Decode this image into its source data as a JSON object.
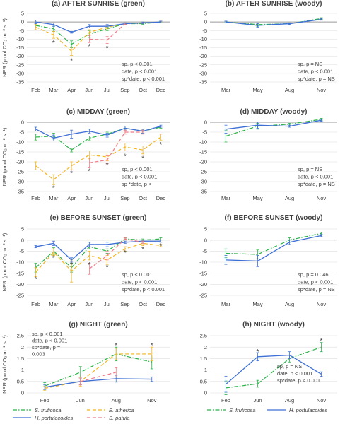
{
  "colors": {
    "S. fruticosa": "#2bb24a",
    "H. portulacoides": "#3d6fd6",
    "E. atherica": "#f2b51f",
    "S. patula": "#f07a86",
    "grid": "#dedede",
    "axis": "#9a9a9a",
    "text": "#404040"
  },
  "legend": {
    "green": [
      "S. fruticosa",
      "E. atherica",
      "H. portulacoides",
      "S. patula"
    ],
    "woody": [
      "S. fruticosa",
      "H. portulacoides"
    ]
  },
  "chart_data": [
    {
      "id": "a",
      "type": "line",
      "title": "(a) AFTER SUNRISE (green)",
      "ylabel": "NER (μmol CO₂ m⁻² s⁻¹)",
      "ylim": [
        -35,
        5
      ],
      "yticks": [
        5,
        0,
        -5,
        -10,
        -15,
        -20,
        -25,
        -30,
        -35
      ],
      "categories": [
        "Feb",
        "Mar",
        "Apr",
        "Jun",
        "Jul",
        "Sep",
        "Oct",
        "Dec"
      ],
      "stats": [
        "sp, p < 0.001",
        "date, p < 0.001",
        "sp*date, p < 0.001"
      ],
      "stars": [
        {
          "x": "Mar",
          "y": -12
        },
        {
          "x": "Apr",
          "y": -22.5
        },
        {
          "x": "Jun",
          "y": -14
        },
        {
          "x": "Jul",
          "y": -15
        }
      ],
      "series": [
        {
          "name": "S. fruticosa",
          "style": "dashdot",
          "x": [
            "Feb",
            "Mar",
            "Apr",
            "Jun",
            "Jul",
            "Sep",
            "Oct",
            "Dec"
          ],
          "values": [
            -2,
            -4,
            -13,
            -7,
            -4,
            -1,
            -1,
            0
          ],
          "err": [
            1.5,
            1.5,
            2,
            2,
            1,
            0.5,
            0.5,
            0.5
          ]
        },
        {
          "name": "E. atherica",
          "style": "dash",
          "x": [
            "Feb",
            "Mar",
            "Apr",
            "Jun",
            "Jul",
            "Sep",
            "Oct",
            "Dec"
          ],
          "values": [
            -3,
            -7.5,
            -17,
            -6,
            -3,
            -1,
            -0.5,
            0
          ],
          "err": [
            1.5,
            2,
            2.5,
            1.5,
            1,
            0.5,
            0.5,
            0.5
          ]
        },
        {
          "name": "H. portulacoides",
          "style": "solid",
          "x": [
            "Feb",
            "Mar",
            "Apr",
            "Jun",
            "Jul",
            "Sep",
            "Oct",
            "Dec"
          ],
          "values": [
            0,
            -1.5,
            -6,
            -2.5,
            -2.5,
            -1,
            -0.5,
            0
          ],
          "err": [
            1,
            1,
            0.5,
            1,
            1,
            0.5,
            0.5,
            0.5
          ]
        },
        {
          "name": "S. patula",
          "style": "dash",
          "x": [
            "Jun",
            "Jul",
            "Sep"
          ],
          "values": [
            -10,
            -10.5,
            -1
          ],
          "err": [
            2,
            2,
            0.5
          ]
        }
      ]
    },
    {
      "id": "b",
      "type": "line",
      "title": "(b) AFTER SUNRISE (woody)",
      "ylim": [
        -35,
        5
      ],
      "yticks": [
        5,
        0,
        -5,
        -10,
        -15,
        -20,
        -25,
        -30,
        -35
      ],
      "categories": [
        "Mar",
        "May",
        "Aug",
        "Nov"
      ],
      "stats": [
        "sp, p = NS",
        "date, p < 0.001",
        "sp*date, p = NS"
      ],
      "stars": [],
      "series": [
        {
          "name": "S. fruticosa",
          "style": "dashdot",
          "x": [
            "Mar",
            "May",
            "Aug",
            "Nov"
          ],
          "values": [
            0,
            -1.5,
            -1,
            2
          ],
          "err": [
            0.5,
            1,
            0.5,
            0.5
          ]
        },
        {
          "name": "H. portulacoides",
          "style": "solid",
          "x": [
            "Mar",
            "May",
            "Aug",
            "Nov"
          ],
          "values": [
            0,
            -2,
            -1,
            1.5
          ],
          "err": [
            0.5,
            1,
            0.5,
            0.5
          ]
        }
      ]
    },
    {
      "id": "c",
      "type": "line",
      "title": "(c) MIDDAY (green)",
      "ylabel": "NER (μmol CO₂ m⁻² s⁻¹)",
      "ylim": [
        -35,
        0
      ],
      "yticks": [
        0,
        -5,
        -10,
        -15,
        -20,
        -25,
        -30,
        -35
      ],
      "categories": [
        "Feb",
        "Mar",
        "Apr",
        "Jun",
        "Jul",
        "Sep",
        "Oct",
        "Dec"
      ],
      "stats": [
        "sp, p < 0.001",
        "date, p < 0.001",
        "sp *date, p <"
      ],
      "stars": [
        {
          "x": "Mar",
          "y": -33
        },
        {
          "x": "Apr",
          "y": -25.5
        },
        {
          "x": "Jun",
          "y": -24.5
        },
        {
          "x": "Jul",
          "y": -21.5
        },
        {
          "x": "Sep",
          "y": -17
        },
        {
          "x": "Oct",
          "y": -18
        },
        {
          "x": "Dec",
          "y": -11
        }
      ],
      "series": [
        {
          "name": "S. fruticosa",
          "style": "dashdot",
          "x": [
            "Feb",
            "Mar",
            "Apr",
            "Jun",
            "Jul",
            "Sep",
            "Oct",
            "Dec"
          ],
          "values": [
            -7.5,
            -7,
            -14,
            -8,
            -6,
            -3,
            -4.5,
            -2.5
          ],
          "err": [
            1.5,
            1.5,
            1,
            1,
            1,
            1,
            1,
            0.5
          ]
        },
        {
          "name": "E. atherica",
          "style": "dash",
          "x": [
            "Feb",
            "Mar",
            "Apr",
            "Jun",
            "Jul",
            "Sep",
            "Oct",
            "Dec"
          ],
          "values": [
            -22,
            -29,
            -22,
            -16.5,
            -17.5,
            -12.5,
            -14,
            -7.5
          ],
          "err": [
            2,
            2.5,
            2,
            2,
            2,
            2,
            2,
            1.5
          ]
        },
        {
          "name": "H. portulacoides",
          "style": "solid",
          "x": [
            "Feb",
            "Mar",
            "Apr",
            "Jun",
            "Jul",
            "Sep",
            "Oct",
            "Dec"
          ],
          "values": [
            -3.5,
            -8,
            -6,
            -4.5,
            -6.5,
            -3,
            -4.5,
            -2
          ],
          "err": [
            1,
            1.5,
            2,
            1,
            1,
            1,
            1,
            0.5
          ]
        },
        {
          "name": "S. patula",
          "style": "dash",
          "x": [
            "Jun",
            "Jul",
            "Sep",
            "Oct"
          ],
          "values": [
            -20.5,
            -19,
            -5,
            -5
          ],
          "err": [
            2.5,
            2,
            1,
            1
          ]
        }
      ]
    },
    {
      "id": "d",
      "type": "line",
      "title": "(d) MIDDAY (woody)",
      "ylim": [
        -35,
        0
      ],
      "yticks": [
        0,
        -5,
        -10,
        -15,
        -20,
        -25,
        -30,
        -35
      ],
      "categories": [
        "Mar",
        "May",
        "Aug",
        "Nov"
      ],
      "stats": [
        "sp, p = NS",
        "date, p < 0.001",
        "sp*date, p = NS"
      ],
      "stars": [],
      "series": [
        {
          "name": "S. fruticosa",
          "style": "dashdot",
          "x": [
            "Mar",
            "May",
            "Aug",
            "Nov"
          ],
          "values": [
            -7,
            -2,
            -1,
            1.5
          ],
          "err": [
            3,
            1.5,
            0.5,
            0.5
          ]
        },
        {
          "name": "H. portulacoides",
          "style": "solid",
          "x": [
            "Mar",
            "May",
            "Aug",
            "Nov"
          ],
          "values": [
            -3.5,
            -1.5,
            -2,
            1
          ],
          "err": [
            2,
            1.5,
            0.5,
            0.5
          ]
        }
      ]
    },
    {
      "id": "e",
      "type": "line",
      "title": "(e) BEFORE SUNSET (green)",
      "ylabel": "NER (μmol CO₂ m⁻² s⁻¹)",
      "ylim": [
        -25,
        5
      ],
      "yticks": [
        5,
        0,
        -5,
        -10,
        -15,
        -20,
        -25
      ],
      "categories": [
        "Feb",
        "Mar",
        "Apr",
        "Jun",
        "Jul",
        "Sep",
        "Oct",
        "Dec"
      ],
      "stats": [
        "sp, p < 0.001",
        "date, p < 0.001",
        "sp*date, p < 0.001"
      ],
      "stars": [
        {
          "x": "Feb",
          "y": -17.5
        },
        {
          "x": "Mar",
          "y": -8
        },
        {
          "x": "Apr",
          "y": -11
        },
        {
          "x": "Jun",
          "y": -11
        },
        {
          "x": "Jul",
          "y": -12
        },
        {
          "x": "Sep",
          "y": -5.5
        },
        {
          "x": "Oct",
          "y": -4
        },
        {
          "x": "Dec",
          "y": -2.5
        }
      ],
      "series": [
        {
          "name": "S. fruticosa",
          "style": "dashdot",
          "x": [
            "Feb",
            "Mar",
            "Apr",
            "Jun",
            "Jul",
            "Sep",
            "Oct",
            "Dec"
          ],
          "values": [
            -12.5,
            -5,
            -12.5,
            -3,
            -5,
            0.5,
            0,
            0.5
          ],
          "err": [
            2,
            1.5,
            2,
            1,
            1,
            0.5,
            0.5,
            0.5
          ]
        },
        {
          "name": "E. atherica",
          "style": "dash",
          "x": [
            "Feb",
            "Mar",
            "Apr",
            "Jun",
            "Jul",
            "Sep",
            "Oct",
            "Dec"
          ],
          "values": [
            -14.5,
            -5.5,
            -14,
            -7,
            -9,
            -4,
            -1.5,
            -2.5
          ],
          "err": [
            2,
            1.5,
            5,
            2,
            2,
            1,
            1,
            0.5
          ]
        },
        {
          "name": "H. portulacoides",
          "style": "solid",
          "x": [
            "Feb",
            "Mar",
            "Apr",
            "Jun",
            "Jul",
            "Sep",
            "Oct",
            "Dec"
          ],
          "values": [
            -3,
            -1.5,
            -9,
            -2,
            -2,
            -1,
            -0.5,
            -0.5
          ],
          "err": [
            0.5,
            1,
            1,
            1,
            1,
            0.5,
            0.5,
            0.5
          ]
        },
        {
          "name": "S. patula",
          "style": "dash",
          "x": [
            "Jun",
            "Jul",
            "Sep",
            "Oct"
          ],
          "values": [
            -13,
            -7,
            0.5,
            -1
          ],
          "err": [
            2.5,
            2,
            0.5,
            0.5
          ]
        }
      ]
    },
    {
      "id": "f",
      "type": "line",
      "title": "(f) BEFORE SUNSET (woody)",
      "ylim": [
        -25,
        5
      ],
      "yticks": [
        5,
        0,
        -5,
        -10,
        -15,
        -20,
        -25
      ],
      "categories": [
        "Mar",
        "May",
        "Aug",
        "Nov"
      ],
      "stats": [
        "sp, p = 0.046",
        "date, p < 0.001",
        "sp*date, p = NS"
      ],
      "stars": [],
      "series": [
        {
          "name": "S. fruticosa",
          "style": "dashdot",
          "x": [
            "Mar",
            "May",
            "Aug",
            "Nov"
          ],
          "values": [
            -6,
            -6.5,
            0,
            3
          ],
          "err": [
            2,
            2,
            1,
            0.5
          ]
        },
        {
          "name": "H. portulacoides",
          "style": "solid",
          "x": [
            "Mar",
            "May",
            "Aug",
            "Nov"
          ],
          "values": [
            -9,
            -9.5,
            -1,
            2
          ],
          "err": [
            2,
            2.5,
            1,
            0.5
          ]
        }
      ]
    },
    {
      "id": "g",
      "type": "line",
      "title": "(g) NIGHT (green)",
      "ylabel": "NER (μmol CO₂ m⁻² s⁻¹)",
      "ylim": [
        0,
        2.5
      ],
      "yticks": [
        2.5,
        2,
        1.5,
        1,
        0.5,
        0
      ],
      "categories": [
        "Feb",
        "Jun",
        "Aug",
        "Nov"
      ],
      "stats": [
        "sp, p < 0.001",
        "date, p < 0.001",
        "sp*date, p =",
        "0.003"
      ],
      "stars": [
        {
          "x": "Aug",
          "y": 2.1
        },
        {
          "x": "Nov",
          "y": 2.1
        }
      ],
      "series": [
        {
          "name": "S. fruticosa",
          "style": "dashdot",
          "x": [
            "Feb",
            "Jun",
            "Aug",
            "Nov"
          ],
          "values": [
            0.3,
            0.9,
            1.7,
            1.35
          ],
          "err": [
            0.15,
            0.25,
            0.3,
            0.3
          ]
        },
        {
          "name": "E. atherica",
          "style": "dash",
          "x": [
            "Feb",
            "Jun",
            "Aug",
            "Nov"
          ],
          "values": [
            0.2,
            0.5,
            1.7,
            1.7
          ],
          "err": [
            0.1,
            0.2,
            0.25,
            0.3
          ]
        },
        {
          "name": "H. portulacoides",
          "style": "solid",
          "x": [
            "Feb",
            "Jun",
            "Aug",
            "Nov"
          ],
          "values": [
            0.25,
            0.5,
            0.62,
            0.6
          ],
          "err": [
            0.1,
            0.15,
            0.15,
            0.1
          ]
        },
        {
          "name": "S. patula",
          "style": "dash",
          "x": [
            "Jun",
            "Aug"
          ],
          "values": [
            0.5,
            0.9
          ],
          "err": [
            0.15,
            0.2
          ]
        }
      ]
    },
    {
      "id": "h",
      "type": "line",
      "title": "(h) NIGHT (woody)",
      "ylim": [
        0,
        2.5
      ],
      "yticks": [
        2.5,
        2,
        1.5,
        1,
        0.5,
        0
      ],
      "categories": [
        "Feb",
        "Jun",
        "Aug",
        "Nov"
      ],
      "stats": [
        "sp, p = NS",
        "date, p < 0.001",
        "sp*date, p < 0.001"
      ],
      "stars": [
        {
          "x": "Jun",
          "y": 1.82
        },
        {
          "x": "Nov",
          "y": 2.3
        }
      ],
      "series": [
        {
          "name": "S. fruticosa",
          "style": "dashdot",
          "x": [
            "Feb",
            "Jun",
            "Aug",
            "Nov"
          ],
          "values": [
            0.22,
            0.4,
            1.5,
            2
          ],
          "err": [
            0.3,
            0.15,
            0.15,
            0.2
          ]
        },
        {
          "name": "H. portulacoides",
          "style": "solid",
          "x": [
            "Feb",
            "Jun",
            "Aug",
            "Nov"
          ],
          "values": [
            0.38,
            1.58,
            1.65,
            0.82
          ],
          "err": [
            0.35,
            0.18,
            0.15,
            0.1
          ]
        }
      ]
    }
  ]
}
